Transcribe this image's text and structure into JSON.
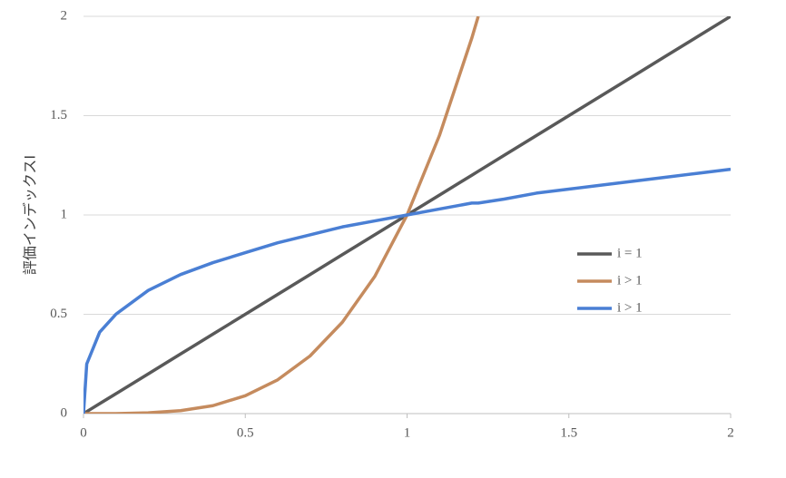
{
  "chart_data": {
    "type": "line",
    "y_label": "評価インデックスI",
    "x": [
      0,
      0.01,
      0.05,
      0.1,
      0.2,
      0.3,
      0.4,
      0.5,
      0.6,
      0.7,
      0.8,
      0.9,
      1,
      1.1,
      1.2,
      1.22,
      1.3,
      1.4,
      1.5,
      1.6,
      1.7,
      1.8,
      1.9,
      2
    ],
    "series": [
      {
        "name": "i = 1",
        "color": "#595959",
        "values": [
          0,
          0.01,
          0.05,
          0.1,
          0.2,
          0.3,
          0.4,
          0.5,
          0.6,
          0.7,
          0.8,
          0.9,
          1,
          1.1,
          1.2,
          1.22,
          1.3,
          1.4,
          1.5,
          1.6,
          1.7,
          1.8,
          1.9,
          2
        ]
      },
      {
        "name": "i > 1",
        "color": "#c58b5e",
        "values": [
          0,
          0,
          0,
          0,
          0.004,
          0.015,
          0.04,
          0.09,
          0.17,
          0.29,
          0.46,
          0.69,
          1,
          1.4,
          1.89,
          2,
          null,
          null,
          null,
          null,
          null,
          null,
          null,
          null
        ]
      },
      {
        "name": "i > 1",
        "color": "#4a7fd4",
        "values": [
          0,
          0.25,
          0.41,
          0.5,
          0.62,
          0.7,
          0.76,
          0.81,
          0.86,
          0.9,
          0.94,
          0.97,
          1,
          1.03,
          1.06,
          1.06,
          1.08,
          1.11,
          1.13,
          1.15,
          1.17,
          1.19,
          1.21,
          1.23
        ]
      }
    ],
    "xlim": [
      0,
      2
    ],
    "xticks": [
      0,
      0.5,
      1,
      1.5,
      2
    ],
    "ylim": [
      0,
      2
    ],
    "yticks": [
      0,
      0.5,
      1,
      1.5,
      2
    ],
    "grid": true,
    "legend": "right"
  }
}
